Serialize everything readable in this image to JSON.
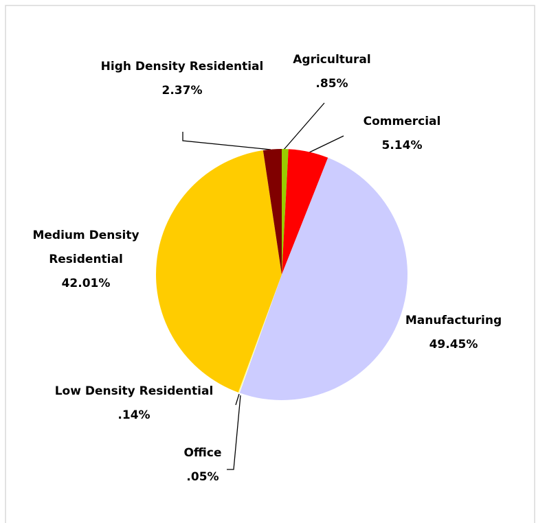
{
  "chart_data": {
    "type": "pie",
    "categories": [
      "Agricultural",
      "Commercial",
      "Manufacturing",
      "Office",
      "Low Density Residential",
      "Medium Density Residential",
      "High Density Residential"
    ],
    "values": [
      0.85,
      5.14,
      49.45,
      0.05,
      0.14,
      42.01,
      2.37
    ],
    "value_labels": [
      ".85%",
      "5.14%",
      "49.45%",
      ".05%",
      ".14%",
      "42.01%",
      "2.37%"
    ],
    "colors": [
      "#99cc00",
      "#ff0000",
      "#ccccff",
      "#ffffff",
      "#ffff99",
      "#ffcc00",
      "#800000"
    ]
  }
}
